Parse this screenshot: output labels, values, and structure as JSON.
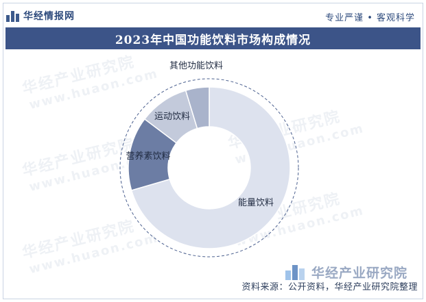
{
  "header": {
    "brand_name": "华经情报网",
    "slogan": "专业严谨 • 客观科学"
  },
  "title": "2023年中国功能饮料市场构成情况",
  "watermark": {
    "text": "华经产业研究院",
    "url": "www.huaon.com"
  },
  "footer": {
    "corner_brand": "华经产业研究院",
    "source": "资料来源：公开资料，华经产业研究院整理"
  },
  "colors": {
    "title_bar": "#3c5488",
    "slice_energy": "#dde2ee",
    "slice_nutrient": "#6c7da4",
    "slice_sports": "#c3cadb",
    "slice_other": "#a9b3cb",
    "dashed_ring": "#4a5f8e"
  },
  "chart_data": {
    "type": "pie",
    "variant": "donut",
    "title": "2023年中国功能饮料市场构成情况",
    "start_angle_deg": 0,
    "direction": "clockwise",
    "slices": [
      {
        "label": "能量饮料",
        "value": 70.5
      },
      {
        "label": "营养素饮料",
        "value": 14.8
      },
      {
        "label": "运动饮料",
        "value": 10.0
      },
      {
        "label": "其他功能饮料",
        "value": 4.7
      }
    ],
    "value_labels_shown": false,
    "legend": "none"
  }
}
